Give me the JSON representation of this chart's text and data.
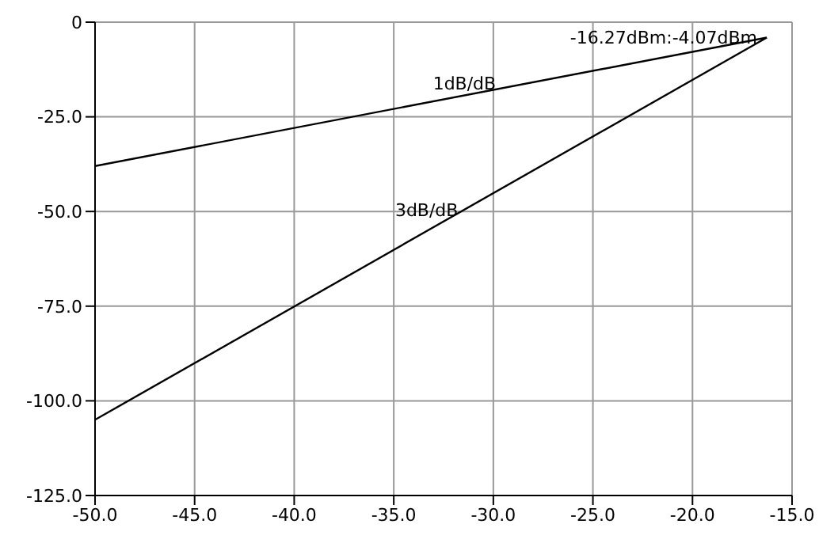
{
  "chart_data": {
    "type": "line",
    "series": [
      {
        "name": "1dB/dB",
        "color": "#000000",
        "values": [
          -38,
          -4.07
        ]
      },
      {
        "name": "3dB/dB",
        "color": "#000000",
        "values": [
          -105,
          -4.07
        ]
      }
    ],
    "x": [
      -50,
      -16.27
    ],
    "xlim": [
      -50,
      -15
    ],
    "xticks": [
      {
        "value": -50,
        "label": "-50.0"
      },
      {
        "value": -45,
        "label": "-45.0"
      },
      {
        "value": -40,
        "label": "-40.0"
      },
      {
        "value": -35,
        "label": "-35.0"
      },
      {
        "value": -30,
        "label": "-30.0"
      },
      {
        "value": -25,
        "label": "-25.0"
      },
      {
        "value": -20,
        "label": "-20.0"
      },
      {
        "value": -15,
        "label": "-15.0"
      }
    ],
    "ylim": [
      -125,
      0
    ],
    "yticks": [
      {
        "value": -125,
        "label": "-125.0"
      },
      {
        "value": -100,
        "label": "-100.0"
      },
      {
        "value": -75,
        "label": "-75.0"
      },
      {
        "value": -50,
        "label": "-50.0"
      },
      {
        "value": -25,
        "label": "-25.0"
      },
      0
    ],
    "annotations": [
      {
        "text": "-16.27dBm:-4.07dBm",
        "x": -16.27,
        "y": -4.07
      }
    ],
    "grid": true,
    "legend": false,
    "line_style": "solid"
  }
}
